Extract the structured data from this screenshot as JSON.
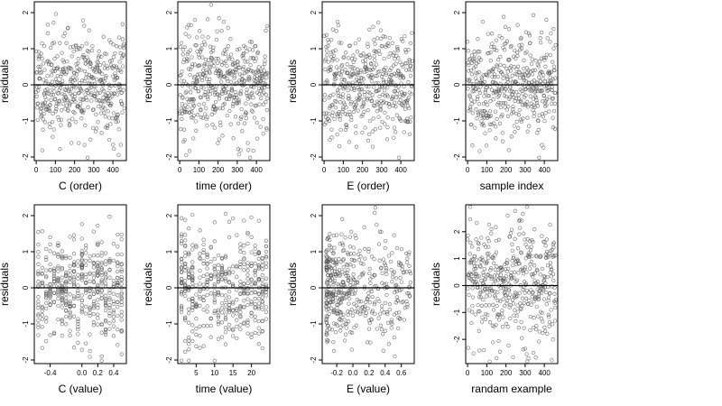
{
  "chart_data": [
    {
      "type": "scatter",
      "xlabel": "C (order)",
      "ylabel": "residuals",
      "xlim": [
        -10,
        470
      ],
      "ylim": [
        -2.1,
        2.3
      ],
      "xticks": [
        0,
        100,
        200,
        300,
        400
      ],
      "xtick_labels": [
        "0",
        "100",
        "200",
        "300",
        "400"
      ],
      "yticks": [
        -2,
        -1,
        0,
        1,
        2
      ],
      "ytick_labels": [
        "-2",
        "-1",
        "0",
        "1",
        "2"
      ],
      "zero_line": 0,
      "n_points": 460,
      "x_mode": "order",
      "seed": 11
    },
    {
      "type": "scatter",
      "xlabel": "time (order)",
      "ylabel": "residuals",
      "xlim": [
        -10,
        470
      ],
      "ylim": [
        -2.1,
        2.3
      ],
      "xticks": [
        0,
        100,
        200,
        300,
        400
      ],
      "xtick_labels": [
        "0",
        "100",
        "200",
        "300",
        "400"
      ],
      "yticks": [
        -2,
        -1,
        0,
        1,
        2
      ],
      "ytick_labels": [
        "-2",
        "-1",
        "0",
        "1",
        "2"
      ],
      "zero_line": 0,
      "n_points": 460,
      "x_mode": "order",
      "seed": 23
    },
    {
      "type": "scatter",
      "xlabel": "E (order)",
      "ylabel": "residuals",
      "xlim": [
        -10,
        470
      ],
      "ylim": [
        -2.1,
        2.3
      ],
      "xticks": [
        0,
        100,
        200,
        300,
        400
      ],
      "xtick_labels": [
        "0",
        "100",
        "200",
        "300",
        "400"
      ],
      "yticks": [
        -2,
        -1,
        0,
        1,
        2
      ],
      "ytick_labels": [
        "-2",
        "-1",
        "0",
        "1",
        "2"
      ],
      "zero_line": 0,
      "n_points": 460,
      "x_mode": "order",
      "seed": 37
    },
    {
      "type": "scatter",
      "xlabel": "sample index",
      "ylabel": "residuals",
      "xlim": [
        -10,
        470
      ],
      "ylim": [
        -2.1,
        2.3
      ],
      "xticks": [
        0,
        100,
        200,
        300,
        400
      ],
      "xtick_labels": [
        "0",
        "100",
        "200",
        "300",
        "400"
      ],
      "yticks": [
        -2,
        -1,
        0,
        1,
        2
      ],
      "ytick_labels": [
        "-2",
        "-1",
        "0",
        "1",
        "2"
      ],
      "zero_line": 0,
      "n_points": 460,
      "x_mode": "order",
      "seed": 41
    },
    {
      "type": "scatter",
      "xlabel": "C (value)",
      "ylabel": "residuals",
      "xlim": [
        -0.6,
        0.56
      ],
      "ylim": [
        -2.1,
        2.3
      ],
      "xticks": [
        -0.4,
        0.0,
        0.2,
        0.4
      ],
      "xtick_labels": [
        "-0.4",
        "0.0",
        "0.2",
        "0.4"
      ],
      "yticks": [
        -2,
        -1,
        0,
        1,
        2
      ],
      "ytick_labels": [
        "-2",
        "-1",
        "0",
        "1",
        "2"
      ],
      "zero_line": 0,
      "n_points": 460,
      "x_mode": "discrete",
      "x_levels": [
        -0.55,
        -0.5,
        -0.45,
        -0.4,
        -0.35,
        -0.3,
        -0.25,
        -0.2,
        -0.15,
        -0.1,
        -0.05,
        0.0,
        0.05,
        0.1,
        0.15,
        0.2,
        0.25,
        0.3,
        0.35,
        0.4,
        0.45,
        0.5
      ],
      "seed": 53
    },
    {
      "type": "scatter",
      "xlabel": "time (value)",
      "ylabel": "residuals",
      "xlim": [
        0,
        25
      ],
      "ylim": [
        -2.1,
        2.3
      ],
      "xticks": [
        5,
        10,
        15,
        20
      ],
      "xtick_labels": [
        "5",
        "10",
        "15",
        "20"
      ],
      "yticks": [
        -2,
        -1,
        0,
        1,
        2
      ],
      "ytick_labels": [
        "-2",
        "-1",
        "0",
        "1",
        "2"
      ],
      "zero_line": 0,
      "n_points": 460,
      "x_mode": "discrete",
      "x_levels": [
        1,
        2,
        3,
        4,
        5,
        6,
        7,
        8,
        9,
        10,
        11,
        12,
        13,
        14,
        15,
        16,
        17,
        18,
        19,
        20,
        21,
        22,
        23,
        24
      ],
      "seed": 67
    },
    {
      "type": "scatter",
      "xlabel": "E (value)",
      "ylabel": "residuals",
      "xlim": [
        -0.38,
        0.76
      ],
      "ylim": [
        -2.1,
        2.3
      ],
      "xticks": [
        -0.2,
        0.0,
        0.2,
        0.4,
        0.6
      ],
      "xtick_labels": [
        "-0.2",
        "0.0",
        "0.2",
        "0.4",
        "0.6"
      ],
      "yticks": [
        -2,
        -1,
        0,
        1,
        2
      ],
      "ytick_labels": [
        "-2",
        "-1",
        "0",
        "1",
        "2"
      ],
      "zero_line": 0,
      "n_points": 460,
      "x_mode": "skewed",
      "x_min": -0.33,
      "x_max": 0.72,
      "seed": 79
    },
    {
      "type": "scatter",
      "xlabel": "randam example",
      "ylabel": "residuals",
      "xlim": [
        -10,
        470
      ],
      "ylim": [
        -2.9,
        3.0
      ],
      "xticks": [
        0,
        100,
        200,
        300,
        400
      ],
      "xtick_labels": [
        "0",
        "100",
        "200",
        "300",
        "400"
      ],
      "yticks": [
        -2,
        -1,
        0,
        1,
        2
      ],
      "ytick_labels": [
        "-2",
        "-1",
        "0",
        "1",
        "2"
      ],
      "zero_line": 0,
      "n_points": 460,
      "x_mode": "order",
      "spread": 1.2,
      "seed": 97
    }
  ]
}
